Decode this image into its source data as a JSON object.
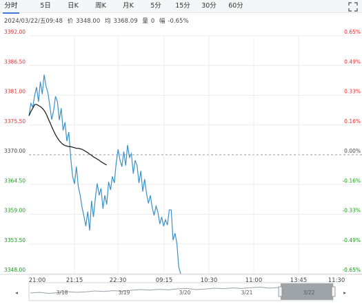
{
  "tabs": [
    {
      "label": "分时",
      "active": true
    },
    {
      "label": "5日",
      "active": false
    },
    {
      "label": "日K",
      "active": false
    },
    {
      "label": "周K",
      "active": false
    },
    {
      "label": "月K",
      "active": false
    },
    {
      "label": "5分",
      "active": false
    },
    {
      "label": "15分",
      "active": false
    },
    {
      "label": "30分",
      "active": false
    },
    {
      "label": "60分",
      "active": false
    }
  ],
  "expand_icon": "expand-icon",
  "status": {
    "datetime": "2024/03/22/五09:48",
    "price_label": "价",
    "price": "3348.00",
    "avg_label": "均",
    "avg": "3368.09",
    "volume_label": "量",
    "volume": "0",
    "change_label": "幅",
    "change": "-0.65%"
  },
  "colors": {
    "up": "#e23030",
    "down": "#1a9a1a",
    "price_line": "#3a90c8",
    "avg_line": "#222222",
    "grid": "#ececec",
    "baseline": "#999999"
  },
  "chart_data": {
    "type": "line",
    "y_labels": [
      "3392.00",
      "3386.50",
      "3381.00",
      "3375.50",
      "3370.00",
      "3364.50",
      "3359.00",
      "3353.50",
      "3348.00"
    ],
    "pct_labels": [
      "0.65%",
      "0.49%",
      "0.33%",
      "0.16%",
      "0.00%",
      "-0.16%",
      "-0.33%",
      "-0.49%",
      "-0.65%"
    ],
    "ylim": [
      3348,
      3392
    ],
    "baseline": 3370,
    "x_labels": [
      "21:00",
      "21:15",
      "22:30",
      "09:15",
      "10:30",
      "11:00",
      "13:45",
      "11:30"
    ],
    "series": [
      {
        "name": "价",
        "values": [
          3377.2,
          3379.5,
          3378.8,
          3381.0,
          3382.5,
          3379.8,
          3383.5,
          3381.2,
          3384.8,
          3382.6,
          3381.5,
          3379.0,
          3376.5,
          3378.2,
          3380.8,
          3379.8,
          3376.4,
          3378.6,
          3374.5,
          3376.0,
          3372.5,
          3374.2,
          3369.5,
          3366.0,
          3364.6,
          3367.8,
          3364.2,
          3362.5,
          3360.3,
          3358.6,
          3356.8,
          3359.5,
          3356.0,
          3361.5,
          3358.5,
          3362.0,
          3364.7,
          3362.5,
          3363.8,
          3360.0,
          3362.5,
          3360.8,
          3365.0,
          3363.5,
          3366.0,
          3364.8,
          3368.5,
          3371.0,
          3369.0,
          3367.8,
          3370.6,
          3368.0,
          3371.8,
          3369.5,
          3370.2,
          3366.5,
          3369.0,
          3368.0,
          3364.8,
          3367.0,
          3363.2,
          3365.5,
          3362.8,
          3361.0,
          3362.5,
          3360.2,
          3358.8,
          3360.5,
          3359.4,
          3357.2,
          3358.5,
          3356.8,
          3358.0,
          3357.0,
          3359.8,
          3359.8,
          3354.2,
          3355.5,
          3353.6,
          3349.2,
          3348.0
        ],
        "color": "#3a90c8"
      },
      {
        "name": "均",
        "values": [
          3377.2,
          3378.0,
          3378.6,
          3379.3,
          3379.3,
          3379.1,
          3378.9,
          3378.6,
          3378.2,
          3377.6,
          3376.8,
          3376.0,
          3375.2,
          3374.4,
          3373.7,
          3373.1,
          3372.6,
          3372.2,
          3371.9,
          3371.7,
          3371.6,
          3371.5,
          3371.5,
          3371.4,
          3371.3,
          3371.2,
          3371.2,
          3371.1,
          3371.0,
          3370.8,
          3370.6,
          3370.4,
          3370.1,
          3369.9,
          3369.6,
          3369.4,
          3369.2,
          3369.0,
          3368.7,
          3368.5,
          3368.3,
          3368.1
        ],
        "color": "#222222"
      }
    ],
    "grid": true
  },
  "navigator": {
    "labels": [
      "3/18",
      "3/19",
      "3/20",
      "3/21",
      "3/22"
    ]
  }
}
